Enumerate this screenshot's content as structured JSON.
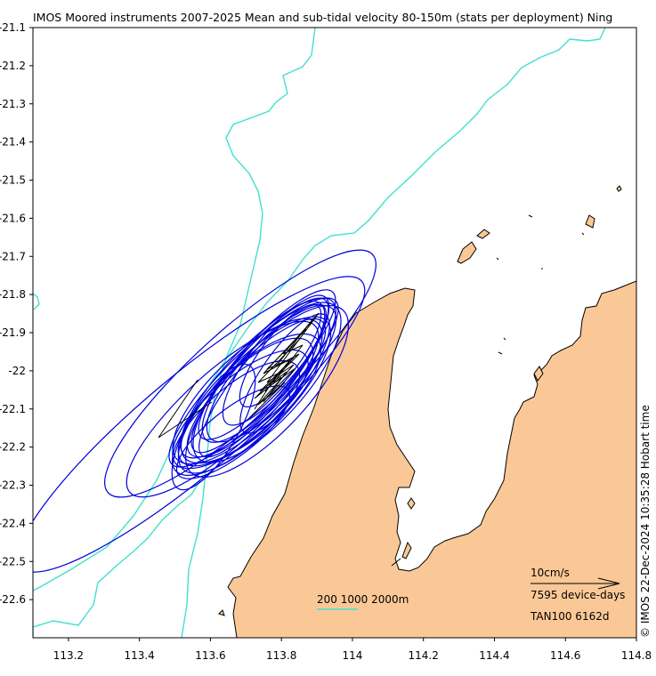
{
  "title": "IMOS Moored instruments 2007-2025 Mean and sub-tidal velocity 80-150m (stats per deployment) Ning",
  "side_label": "© IMOS 22-Dec-2024 10:35:28 Hobart time",
  "legend": {
    "velocity_scale": "10cm/s",
    "device_days": "7595 device-days",
    "station": "TAN100 6162d",
    "isobaths": "200 1000 2000m"
  },
  "colors": {
    "land": "#fac896",
    "coast": "#000000",
    "ellipse": "#0000dd",
    "isobath": "#40e0d0",
    "vector": "#000000"
  },
  "chart_data": {
    "type": "map",
    "xlim": [
      113.1,
      114.8
    ],
    "ylim": [
      -22.7,
      -21.1
    ],
    "x_ticks": [
      113.2,
      113.4,
      113.6,
      113.8,
      114,
      114.2,
      114.4,
      114.6,
      114.8
    ],
    "x_tick_labels": [
      "113.2",
      "113.4",
      "113.6",
      "113.8",
      "114",
      "114.2",
      "114.4",
      "114.6",
      "114.8"
    ],
    "y_ticks": [
      -21.1,
      -21.2,
      -21.3,
      -21.4,
      -21.5,
      -21.6,
      -21.7,
      -21.8,
      -21.9,
      -22,
      -22.1,
      -22.2,
      -22.3,
      -22.4,
      -22.5,
      -22.6
    ],
    "y_tick_labels": [
      "-21.1",
      "-21.2",
      "-21.3",
      "-21.4",
      "-21.5",
      "-21.6",
      "-21.7",
      "-21.8",
      "-21.9",
      "-22",
      "-22.1",
      "-22.2",
      "-22.3",
      "-22.4",
      "-22.5",
      "-22.6"
    ],
    "isobath_depths_m": [
      200,
      1000,
      2000
    ],
    "velocity_scale_cm_s": 10,
    "total_device_days": 7595
  }
}
